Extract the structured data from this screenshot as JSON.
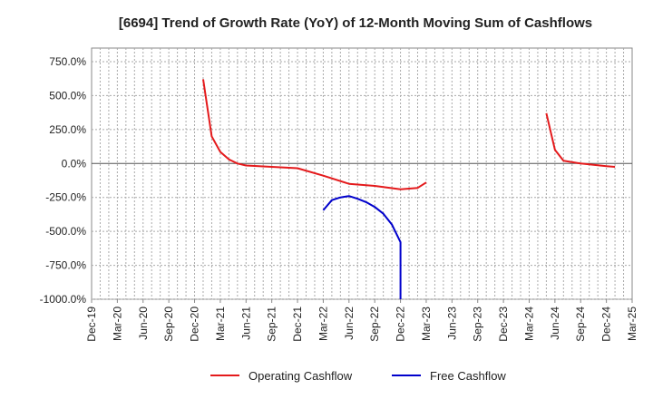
{
  "chart_data": {
    "type": "line",
    "title": "[6694]  Trend of Growth Rate (YoY) of 12-Month Moving Sum of Cashflows",
    "xlabel": "",
    "ylabel": "",
    "ylim": [
      -1000,
      850
    ],
    "y_ticks": [
      750,
      500,
      250,
      0,
      -250,
      -500,
      -750,
      -1000
    ],
    "y_tick_labels": [
      "750.0%",
      "500.0%",
      "250.0%",
      "0.0%",
      "-250.0%",
      "-500.0%",
      "-750.0%",
      "-1000.0%"
    ],
    "x_ticks": [
      "Dec-19",
      "Mar-20",
      "Jun-20",
      "Sep-20",
      "Dec-20",
      "Mar-21",
      "Jun-21",
      "Sep-21",
      "Dec-21",
      "Mar-22",
      "Jun-22",
      "Sep-22",
      "Dec-22",
      "Mar-23",
      "Jun-23",
      "Sep-23",
      "Dec-23",
      "Mar-24",
      "Jun-24",
      "Sep-24",
      "Dec-24",
      "Mar-25"
    ],
    "grid": true,
    "legend_position": "bottom",
    "zero_line": true,
    "series": [
      {
        "name": "Operating Cashflow",
        "color": "#e41a1c",
        "segments": [
          [
            [
              "2021-01",
              620
            ],
            [
              "2021-02",
              200
            ],
            [
              "2021-03",
              85
            ],
            [
              "2021-04",
              30
            ],
            [
              "2021-05",
              0
            ],
            [
              "2021-06",
              -15
            ],
            [
              "2021-09",
              -25
            ],
            [
              "2021-12",
              -35
            ],
            [
              "2022-03",
              -90
            ],
            [
              "2022-06",
              -150
            ],
            [
              "2022-09",
              -165
            ],
            [
              "2022-12",
              -190
            ],
            [
              "2023-02",
              -180
            ],
            [
              "2023-03",
              -140
            ]
          ],
          [
            [
              "2024-05",
              370
            ],
            [
              "2024-06",
              100
            ],
            [
              "2024-07",
              20
            ],
            [
              "2024-09",
              0
            ],
            [
              "2024-12",
              -20
            ],
            [
              "2025-01",
              -25
            ]
          ]
        ]
      },
      {
        "name": "Free Cashflow",
        "color": "#0000cc",
        "segments": [
          [
            [
              "2022-03",
              -345
            ],
            [
              "2022-04",
              -270
            ],
            [
              "2022-05",
              -250
            ],
            [
              "2022-06",
              -240
            ],
            [
              "2022-07",
              -260
            ],
            [
              "2022-08",
              -285
            ],
            [
              "2022-09",
              -320
            ],
            [
              "2022-10",
              -370
            ],
            [
              "2022-11",
              -450
            ],
            [
              "2022-12",
              -580
            ],
            [
              "2022-12",
              -1000
            ]
          ]
        ]
      }
    ]
  }
}
